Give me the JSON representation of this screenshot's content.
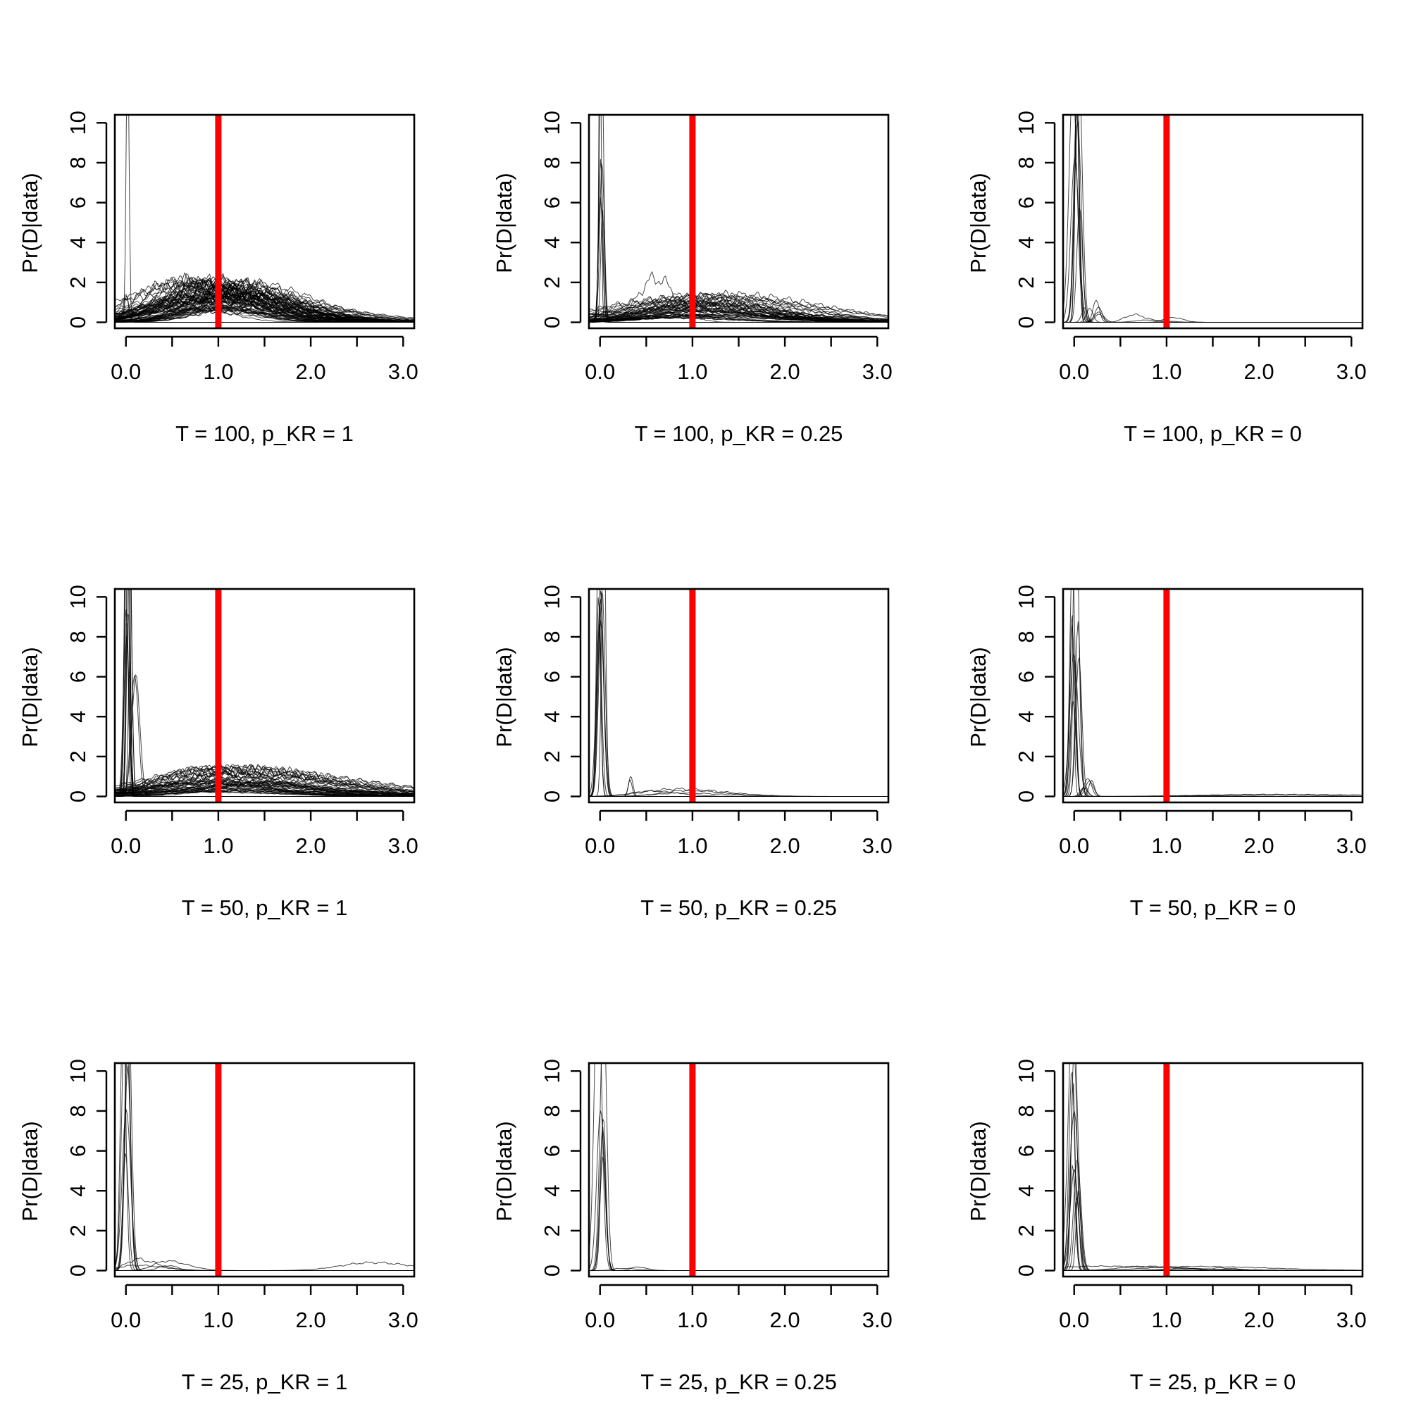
{
  "figure": {
    "layout": {
      "rows": 3,
      "cols": 3
    },
    "colors": {
      "truth_line": "#ff0000",
      "curves": "#000000",
      "axes": "#000000",
      "background": "#ffffff"
    },
    "shared_ylabel": "Pr(D|data)"
  },
  "chart_data": [
    {
      "type": "line",
      "xlabel": "T = 100, p_KR = 1",
      "ylabel": "Pr(D|data)",
      "xlim": [
        -0.12,
        3.12
      ],
      "ylim": [
        -0.3,
        10.4
      ],
      "x_ticks": [
        0,
        0.5,
        1,
        1.5,
        2,
        2.5,
        3
      ],
      "x_tick_labels": [
        "0.0",
        "1.0",
        "2.0",
        "3.0"
      ],
      "y_ticks": [
        0,
        2,
        4,
        6,
        8,
        10
      ],
      "y_tick_labels": [
        "0",
        "2",
        "4",
        "6",
        "8",
        "10"
      ],
      "truth_x": 1,
      "grid": false,
      "series_groups": [
        {
          "kind": "hump",
          "count": 70,
          "center": [
            0.55,
            1.35
          ],
          "width": [
            0.35,
            0.65
          ],
          "height": [
            0.5,
            2.1
          ],
          "seed": 11
        },
        {
          "kind": "spike",
          "count": 1,
          "center": [
            0.01,
            0.02
          ],
          "width": [
            0.012,
            0.016
          ],
          "height": [
            14,
            14
          ],
          "seed": 12
        },
        {
          "kind": "spike",
          "count": 2,
          "center": [
            0.0,
            0.02
          ],
          "width": [
            0.02,
            0.03
          ],
          "height": [
            1.0,
            1.4
          ],
          "seed": 13
        }
      ]
    },
    {
      "type": "line",
      "xlabel": "T = 100, p_KR = 0.25",
      "ylabel": "Pr(D|data)",
      "xlim": [
        -0.12,
        3.12
      ],
      "ylim": [
        -0.3,
        10.4
      ],
      "x_ticks": [
        0,
        0.5,
        1,
        1.5,
        2,
        2.5,
        3
      ],
      "x_tick_labels": [
        "0.0",
        "1.0",
        "2.0",
        "3.0"
      ],
      "y_ticks": [
        0,
        2,
        4,
        6,
        8,
        10
      ],
      "y_tick_labels": [
        "0",
        "2",
        "4",
        "6",
        "8",
        "10"
      ],
      "truth_x": 1,
      "grid": false,
      "series_groups": [
        {
          "kind": "hump",
          "count": 45,
          "center": [
            0.6,
            1.5
          ],
          "width": [
            0.45,
            0.8
          ],
          "height": [
            0.2,
            1.4
          ],
          "seed": 21
        },
        {
          "kind": "hump",
          "count": 1,
          "center": [
            0.55,
            0.6
          ],
          "width": [
            0.18,
            0.2
          ],
          "height": [
            2.2,
            2.2
          ],
          "seed": 22
        },
        {
          "kind": "spike",
          "count": 6,
          "center": [
            -0.01,
            0.03
          ],
          "width": [
            0.012,
            0.025
          ],
          "height": [
            4,
            20
          ],
          "seed": 23
        }
      ]
    },
    {
      "type": "line",
      "xlabel": "T = 100, p_KR = 0",
      "ylabel": "Pr(D|data)",
      "xlim": [
        -0.12,
        3.12
      ],
      "ylim": [
        -0.3,
        10.4
      ],
      "x_ticks": [
        0,
        0.5,
        1,
        1.5,
        2,
        2.5,
        3
      ],
      "x_tick_labels": [
        "0.0",
        "1.0",
        "2.0",
        "3.0"
      ],
      "y_ticks": [
        0,
        2,
        4,
        6,
        8,
        10
      ],
      "y_tick_labels": [
        "0",
        "2",
        "4",
        "6",
        "8",
        "10"
      ],
      "truth_x": 1,
      "grid": false,
      "series_groups": [
        {
          "kind": "spike",
          "count": 8,
          "center": [
            -0.03,
            0.06
          ],
          "width": [
            0.02,
            0.05
          ],
          "height": [
            3,
            16
          ],
          "seed": 31
        },
        {
          "kind": "spike",
          "count": 6,
          "center": [
            0.1,
            0.3
          ],
          "width": [
            0.03,
            0.06
          ],
          "height": [
            0.3,
            1.2
          ],
          "seed": 32
        },
        {
          "kind": "hump",
          "count": 3,
          "center": [
            0.5,
            1.1
          ],
          "width": [
            0.05,
            0.15
          ],
          "height": [
            0.1,
            0.4
          ],
          "seed": 33
        }
      ]
    },
    {
      "type": "line",
      "xlabel": "T = 50, p_KR = 1",
      "ylabel": "Pr(D|data)",
      "xlim": [
        -0.12,
        3.12
      ],
      "ylim": [
        -0.3,
        10.4
      ],
      "x_ticks": [
        0,
        0.5,
        1,
        1.5,
        2,
        2.5,
        3
      ],
      "x_tick_labels": [
        "0.0",
        "1.0",
        "2.0",
        "3.0"
      ],
      "y_ticks": [
        0,
        2,
        4,
        6,
        8,
        10
      ],
      "y_tick_labels": [
        "0",
        "2",
        "4",
        "6",
        "8",
        "10"
      ],
      "truth_x": 1,
      "grid": false,
      "series_groups": [
        {
          "kind": "hump",
          "count": 45,
          "center": [
            0.6,
            1.6
          ],
          "width": [
            0.45,
            0.9
          ],
          "height": [
            0.2,
            1.5
          ],
          "seed": 41
        },
        {
          "kind": "spike",
          "count": 10,
          "center": [
            -0.01,
            0.04
          ],
          "width": [
            0.015,
            0.03
          ],
          "height": [
            6,
            22
          ],
          "seed": 42
        },
        {
          "kind": "spike",
          "count": 2,
          "center": [
            0.08,
            0.12
          ],
          "width": [
            0.04,
            0.06
          ],
          "height": [
            6,
            7.5
          ],
          "seed": 43
        }
      ]
    },
    {
      "type": "line",
      "xlabel": "T = 50, p_KR = 0.25",
      "ylabel": "Pr(D|data)",
      "xlim": [
        -0.12,
        3.12
      ],
      "ylim": [
        -0.3,
        10.4
      ],
      "x_ticks": [
        0,
        0.5,
        1,
        1.5,
        2,
        2.5,
        3
      ],
      "x_tick_labels": [
        "0.0",
        "1.0",
        "2.0",
        "3.0"
      ],
      "y_ticks": [
        0,
        2,
        4,
        6,
        8,
        10
      ],
      "y_tick_labels": [
        "0",
        "2",
        "4",
        "6",
        "8",
        "10"
      ],
      "truth_x": 1,
      "grid": false,
      "series_groups": [
        {
          "kind": "spike",
          "count": 8,
          "center": [
            -0.02,
            0.04
          ],
          "width": [
            0.02,
            0.05
          ],
          "height": [
            5,
            16
          ],
          "seed": 51
        },
        {
          "kind": "spike",
          "count": 2,
          "center": [
            0.32,
            0.34
          ],
          "width": [
            0.02,
            0.03
          ],
          "height": [
            0.8,
            1.2
          ],
          "seed": 52
        },
        {
          "kind": "hump",
          "count": 4,
          "center": [
            0.5,
            1.2
          ],
          "width": [
            0.2,
            0.4
          ],
          "height": [
            0.1,
            0.5
          ],
          "seed": 53
        }
      ]
    },
    {
      "type": "line",
      "xlabel": "T = 50, p_KR = 0",
      "ylabel": "Pr(D|data)",
      "xlim": [
        -0.12,
        3.12
      ],
      "ylim": [
        -0.3,
        10.4
      ],
      "x_ticks": [
        0,
        0.5,
        1,
        1.5,
        2,
        2.5,
        3
      ],
      "x_tick_labels": [
        "0.0",
        "1.0",
        "2.0",
        "3.0"
      ],
      "y_ticks": [
        0,
        2,
        4,
        6,
        8,
        10
      ],
      "y_tick_labels": [
        "0",
        "2",
        "4",
        "6",
        "8",
        "10"
      ],
      "truth_x": 1,
      "grid": false,
      "series_groups": [
        {
          "kind": "spike",
          "count": 9,
          "center": [
            -0.03,
            0.06
          ],
          "width": [
            0.02,
            0.05
          ],
          "height": [
            3,
            16
          ],
          "seed": 61
        },
        {
          "kind": "spike",
          "count": 5,
          "center": [
            0.1,
            0.2
          ],
          "width": [
            0.03,
            0.05
          ],
          "height": [
            0.4,
            1.0
          ],
          "seed": 62
        },
        {
          "kind": "hump",
          "count": 3,
          "center": [
            1.0,
            2.8
          ],
          "width": [
            0.3,
            0.8
          ],
          "height": [
            0.03,
            0.1
          ],
          "seed": 63
        }
      ]
    },
    {
      "type": "line",
      "xlabel": "T = 25, p_KR = 1",
      "ylabel": "Pr(D|data)",
      "xlim": [
        -0.12,
        3.12
      ],
      "ylim": [
        -0.3,
        10.4
      ],
      "x_ticks": [
        0,
        0.5,
        1,
        1.5,
        2,
        2.5,
        3
      ],
      "x_tick_labels": [
        "0.0",
        "1.0",
        "2.0",
        "3.0"
      ],
      "y_ticks": [
        0,
        2,
        4,
        6,
        8,
        10
      ],
      "y_tick_labels": [
        "0",
        "2",
        "4",
        "6",
        "8",
        "10"
      ],
      "truth_x": 1,
      "grid": false,
      "series_groups": [
        {
          "kind": "spike",
          "count": 6,
          "center": [
            -0.03,
            0.03
          ],
          "width": [
            0.02,
            0.05
          ],
          "height": [
            5,
            18
          ],
          "seed": 71
        },
        {
          "kind": "spike",
          "count": 1,
          "center": [
            0.0,
            0.01
          ],
          "width": [
            0.045,
            0.05
          ],
          "height": [
            8,
            8
          ],
          "seed": 72
        },
        {
          "kind": "hump",
          "count": 4,
          "center": [
            0.1,
            0.5
          ],
          "width": [
            0.05,
            0.2
          ],
          "height": [
            0.2,
            0.6
          ],
          "seed": 73
        },
        {
          "kind": "hump",
          "count": 1,
          "center": [
            2.6,
            2.7
          ],
          "width": [
            0.3,
            0.35
          ],
          "height": [
            0.4,
            0.4
          ],
          "seed": 74
        }
      ]
    },
    {
      "type": "line",
      "xlabel": "T = 25, p_KR = 0.25",
      "ylabel": "Pr(D|data)",
      "xlim": [
        -0.12,
        3.12
      ],
      "ylim": [
        -0.3,
        10.4
      ],
      "x_ticks": [
        0,
        0.5,
        1,
        1.5,
        2,
        2.5,
        3
      ],
      "x_tick_labels": [
        "0.0",
        "1.0",
        "2.0",
        "3.0"
      ],
      "y_ticks": [
        0,
        2,
        4,
        6,
        8,
        10
      ],
      "y_tick_labels": [
        "0",
        "2",
        "4",
        "6",
        "8",
        "10"
      ],
      "truth_x": 1,
      "grid": false,
      "series_groups": [
        {
          "kind": "spike",
          "count": 5,
          "center": [
            -0.03,
            0.04
          ],
          "width": [
            0.02,
            0.05
          ],
          "height": [
            5,
            16
          ],
          "seed": 81
        },
        {
          "kind": "spike",
          "count": 1,
          "center": [
            0.0,
            0.01
          ],
          "width": [
            0.04,
            0.045
          ],
          "height": [
            8,
            8
          ],
          "seed": 82
        },
        {
          "kind": "hump",
          "count": 2,
          "center": [
            0.2,
            0.5
          ],
          "width": [
            0.05,
            0.15
          ],
          "height": [
            0.1,
            0.2
          ],
          "seed": 83
        }
      ]
    },
    {
      "type": "line",
      "xlabel": "T = 25, p_KR = 0",
      "ylabel": "Pr(D|data)",
      "xlim": [
        -0.12,
        3.12
      ],
      "ylim": [
        -0.3,
        10.4
      ],
      "x_ticks": [
        0,
        0.5,
        1,
        1.5,
        2,
        2.5,
        3
      ],
      "x_tick_labels": [
        "0.0",
        "1.0",
        "2.0",
        "3.0"
      ],
      "y_ticks": [
        0,
        2,
        4,
        6,
        8,
        10
      ],
      "y_tick_labels": [
        "0",
        "2",
        "4",
        "6",
        "8",
        "10"
      ],
      "truth_x": 1,
      "grid": false,
      "series_groups": [
        {
          "kind": "spike",
          "count": 9,
          "center": [
            -0.03,
            0.05
          ],
          "width": [
            0.02,
            0.05
          ],
          "height": [
            3,
            16
          ],
          "seed": 91
        },
        {
          "kind": "spike",
          "count": 1,
          "center": [
            0.0,
            0.01
          ],
          "width": [
            0.045,
            0.05
          ],
          "height": [
            8,
            8
          ],
          "seed": 92
        },
        {
          "kind": "hump",
          "count": 6,
          "center": [
            0.2,
            1.6
          ],
          "width": [
            0.1,
            0.6
          ],
          "height": [
            0.05,
            0.25
          ],
          "seed": 93
        }
      ]
    }
  ]
}
